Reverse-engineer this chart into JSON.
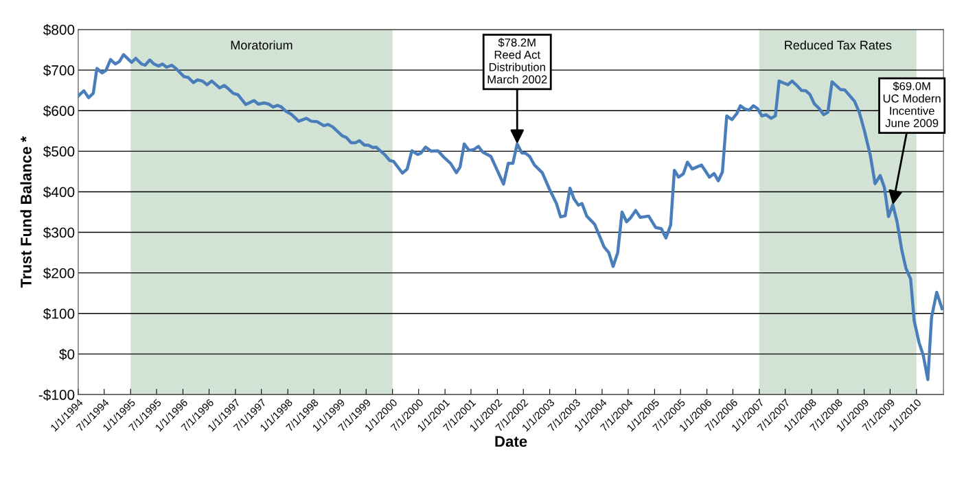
{
  "chart_data": {
    "type": "line",
    "xlabel": "Date",
    "ylabel": "Trust Fund Balance *",
    "x": [
      "1994-01-01",
      "1994-02-09",
      "1994-03-14",
      "1994-04-16",
      "1994-05-11",
      "1994-06-17",
      "1994-07-13",
      "1994-08-14",
      "1994-09-16",
      "1994-10-15",
      "1994-11-13",
      "1995-01-08",
      "1995-02-06",
      "1995-03-18",
      "1995-04-12",
      "1995-05-15",
      "1995-06-13",
      "1995-07-16",
      "1995-08-11",
      "1995-09-09",
      "1995-10-15",
      "1995-11-13",
      "1996-01-08",
      "1996-02-06",
      "1996-03-14",
      "1996-04-12",
      "1996-05-15",
      "1996-06-17",
      "1996-07-20",
      "1996-09-13",
      "1996-10-15",
      "1996-11-06",
      "1996-12-16",
      "1997-01-19",
      "1997-03-14",
      "1997-05-11",
      "1997-06-10",
      "1997-07-20",
      "1997-08-22",
      "1997-09-20",
      "1997-10-22",
      "1997-11-17",
      "1997-12-20",
      "1998-01-26",
      "1998-03-18",
      "1998-05-11",
      "1998-06-13",
      "1998-07-23",
      "1998-09-09",
      "1998-10-08",
      "1998-11-10",
      "1999-01-15",
      "1999-02-13",
      "1999-03-18",
      "1999-04-19",
      "1999-05-15",
      "1999-06-20",
      "1999-07-16",
      "1999-08-18",
      "1999-09-09",
      "1999-11-06",
      "1999-12-13",
      "2000-01-08",
      "2000-03-10",
      "2000-04-12",
      "2000-05-15",
      "2000-06-24",
      "2000-07-16",
      "2000-08-18",
      "2000-09-27",
      "2000-11-13",
      "2000-12-24",
      "2001-02-09",
      "2001-03-21",
      "2001-04-16",
      "2001-05-15",
      "2001-06-17",
      "2001-07-20",
      "2001-08-22",
      "2001-09-20",
      "2001-11-17",
      "2001-12-27",
      "2002-02-13",
      "2002-03-18",
      "2002-04-19",
      "2002-05-19",
      "2002-06-20",
      "2002-07-16",
      "2002-08-14",
      "2002-09-16",
      "2002-11-10",
      "2003-01-01",
      "2003-02-17",
      "2003-03-18",
      "2003-04-19",
      "2003-05-22",
      "2003-06-20",
      "2003-07-20",
      "2003-08-14",
      "2003-09-16",
      "2003-11-10",
      "2004-01-15",
      "2004-02-17",
      "2004-03-18",
      "2004-04-19",
      "2004-05-19",
      "2004-06-20",
      "2004-07-16",
      "2004-08-22",
      "2004-09-23",
      "2004-11-21",
      "2005-01-08",
      "2005-02-17",
      "2005-03-21",
      "2005-04-23",
      "2005-05-19",
      "2005-06-17",
      "2005-07-20",
      "2005-08-18",
      "2005-09-20",
      "2005-11-24",
      "2006-01-19",
      "2006-02-20",
      "2006-03-21",
      "2006-04-19",
      "2006-05-19",
      "2006-06-24",
      "2006-07-27",
      "2006-08-22",
      "2006-09-23",
      "2006-10-22",
      "2006-11-21",
      "2006-12-20",
      "2007-01-19",
      "2007-02-17",
      "2007-03-25",
      "2007-04-23",
      "2007-05-19",
      "2007-06-20",
      "2007-07-20",
      "2007-08-18",
      "2007-09-20",
      "2007-10-22",
      "2007-11-21",
      "2007-12-20",
      "2008-01-19",
      "2008-02-20",
      "2008-03-25",
      "2008-04-23",
      "2008-05-22",
      "2008-06-20",
      "2008-07-20",
      "2008-08-18",
      "2008-09-20",
      "2008-10-26",
      "2008-11-28",
      "2009-01-01",
      "2009-02-13",
      "2009-03-18",
      "2009-04-23",
      "2009-05-22",
      "2009-06-20",
      "2009-07-20",
      "2009-08-18",
      "2009-09-20",
      "2009-10-19",
      "2009-11-21",
      "2009-12-16",
      "2010-01-19",
      "2010-02-17",
      "2010-03-21",
      "2010-04-16",
      "2010-05-22",
      "2010-06-28"
    ],
    "series": [
      {
        "color": "#4a7ebb",
        "values": [
          636,
          649,
          632,
          643,
          704,
          693,
          699,
          726,
          715,
          721,
          738,
          719,
          729,
          715,
          712,
          725,
          715,
          710,
          715,
          707,
          712,
          704,
          684,
          682,
          669,
          676,
          673,
          664,
          673,
          656,
          662,
          656,
          643,
          639,
          615,
          625,
          616,
          619,
          616,
          609,
          613,
          609,
          598,
          591,
          574,
          581,
          574,
          573,
          563,
          566,
          560,
          538,
          534,
          521,
          521,
          526,
          515,
          515,
          509,
          510,
          492,
          477,
          475,
          446,
          456,
          501,
          492,
          495,
          510,
          500,
          501,
          485,
          470,
          447,
          461,
          518,
          502,
          504,
          512,
          498,
          487,
          456,
          419,
          470,
          470,
          518,
          496,
          495,
          487,
          466,
          447,
          405,
          371,
          338,
          341,
          409,
          382,
          367,
          371,
          340,
          320,
          264,
          250,
          216,
          250,
          350,
          326,
          335,
          354,
          337,
          340,
          312,
          309,
          286,
          318,
          453,
          436,
          444,
          473,
          456,
          466,
          436,
          445,
          427,
          449,
          587,
          578,
          592,
          612,
          604,
          601,
          612,
          605,
          587,
          590,
          581,
          587,
          673,
          668,
          664,
          673,
          662,
          650,
          649,
          640,
          617,
          606,
          590,
          596,
          671,
          662,
          652,
          651,
          638,
          623,
          596,
          553,
          490,
          420,
          440,
          411,
          339,
          368,
          327,
          257,
          212,
          185,
          82,
          28,
          -3,
          -63,
          91,
          152,
          112
        ]
      }
    ],
    "xlim": [
      "1994-01-01",
      "2010-07-08"
    ],
    "xticks": [
      {
        "value": "1994-01-01",
        "label": "1/1/1994"
      },
      {
        "value": "1994-07-01",
        "label": "7/1/1994"
      },
      {
        "value": "1995-01-01",
        "label": "1/1/1995"
      },
      {
        "value": "1995-07-01",
        "label": "7/1/1995"
      },
      {
        "value": "1996-01-01",
        "label": "1/1/1996"
      },
      {
        "value": "1996-07-01",
        "label": "7/1/1996"
      },
      {
        "value": "1997-01-01",
        "label": "1/1/1997"
      },
      {
        "value": "1997-07-01",
        "label": "7/1/1997"
      },
      {
        "value": "1998-01-01",
        "label": "1/1/1998"
      },
      {
        "value": "1998-07-01",
        "label": "7/1/1998"
      },
      {
        "value": "1999-01-01",
        "label": "1/1/1999"
      },
      {
        "value": "1999-07-01",
        "label": "7/1/1999"
      },
      {
        "value": "2000-01-01",
        "label": "1/1/2000"
      },
      {
        "value": "2000-07-01",
        "label": "7/1/2000"
      },
      {
        "value": "2001-01-01",
        "label": "1/1/2001"
      },
      {
        "value": "2001-07-01",
        "label": "7/1/2001"
      },
      {
        "value": "2002-01-01",
        "label": "1/1/2002"
      },
      {
        "value": "2002-07-01",
        "label": "7/1/2002"
      },
      {
        "value": "2003-01-01",
        "label": "1/1/2003"
      },
      {
        "value": "2003-07-01",
        "label": "7/1/2003"
      },
      {
        "value": "2004-01-01",
        "label": "1/1/2004"
      },
      {
        "value": "2004-07-01",
        "label": "7/1/2004"
      },
      {
        "value": "2005-01-01",
        "label": "1/1/2005"
      },
      {
        "value": "2005-07-01",
        "label": "7/1/2005"
      },
      {
        "value": "2006-01-01",
        "label": "1/1/2006"
      },
      {
        "value": "2006-07-01",
        "label": "7/1/2006"
      },
      {
        "value": "2007-01-01",
        "label": "1/1/2007"
      },
      {
        "value": "2007-07-01",
        "label": "7/1/2007"
      },
      {
        "value": "2008-01-01",
        "label": "1/1/2008"
      },
      {
        "value": "2008-07-01",
        "label": "7/1/2008"
      },
      {
        "value": "2009-01-01",
        "label": "1/1/2009"
      },
      {
        "value": "2009-07-01",
        "label": "7/1/2009"
      },
      {
        "value": "2010-01-01",
        "label": "1/1/2010"
      }
    ],
    "ylim": [
      -100,
      800
    ],
    "yticks": [
      {
        "value": -100,
        "label": "-$100"
      },
      {
        "value": 0,
        "label": "$0"
      },
      {
        "value": 100,
        "label": "$100"
      },
      {
        "value": 200,
        "label": "$200"
      },
      {
        "value": 300,
        "label": "$300"
      },
      {
        "value": 400,
        "label": "$400"
      },
      {
        "value": 500,
        "label": "$500"
      },
      {
        "value": 600,
        "label": "$600"
      },
      {
        "value": 700,
        "label": "$700"
      },
      {
        "value": 800,
        "label": "$800"
      }
    ],
    "grid": "y",
    "bands": [
      {
        "axis": "x",
        "from": "1995-01-01",
        "to": "2000-01-01",
        "label": "Moratorium",
        "color": "#d2e3d5"
      },
      {
        "axis": "x",
        "from": "2007-01-01",
        "to": "2010-01-01",
        "label": "Reduced Tax Rates",
        "color": "#d2e3d5"
      }
    ],
    "annotations": [
      {
        "text": "$78.2M\nReed Act\nDistribution\nMarch 2002",
        "x": "2002-05-19",
        "y": 518
      },
      {
        "text": "$69.0M\nUC Modern\nIncentive\nJune 2009",
        "x": "2009-07-20",
        "y": 368
      }
    ]
  }
}
